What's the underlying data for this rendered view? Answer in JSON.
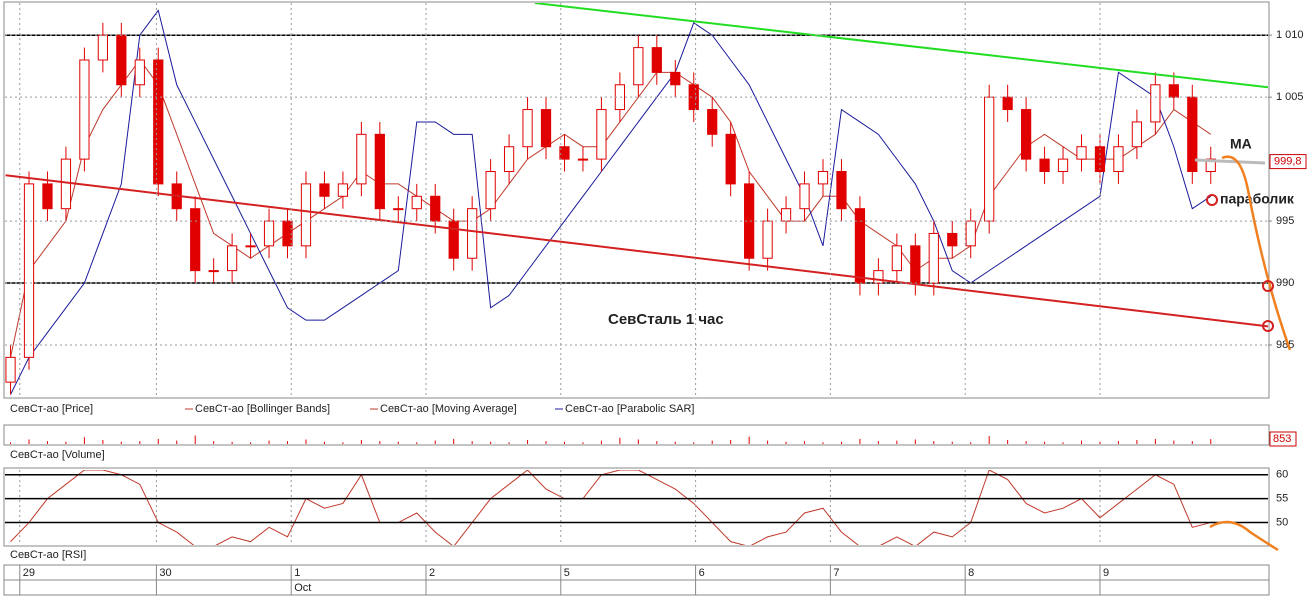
{
  "chart_data": [
    {
      "type": "candlestick",
      "title": "СевСталь   1 час",
      "color": "#e00000",
      "open": [
        982,
        984,
        998,
        996,
        1000,
        1008,
        1010,
        1006,
        1008,
        998,
        996,
        991,
        991,
        993,
        993,
        995,
        993,
        998,
        997,
        998,
        1002,
        996,
        996,
        997,
        995,
        992,
        996,
        999,
        1001,
        1004,
        1001,
        1000,
        1000,
        1004,
        1006,
        1009,
        1007,
        1006,
        1004,
        1002,
        998,
        992,
        995,
        996,
        998,
        999,
        996,
        990,
        991,
        993,
        990,
        994,
        993,
        995,
        1005,
        1004,
        1000,
        999,
        1000,
        1001,
        999,
        1001,
        1003,
        1006,
        1005,
        999
      ],
      "high": [
        985,
        999,
        999,
        1001,
        1009,
        1011,
        1011,
        1009,
        1009,
        999,
        997,
        992,
        994,
        994,
        996,
        996,
        999,
        999,
        999,
        1003,
        1003,
        997,
        998,
        998,
        996,
        997,
        1000,
        1002,
        1005,
        1005,
        1002,
        1001,
        1005,
        1007,
        1010,
        1010,
        1008,
        1007,
        1005,
        1003,
        999,
        996,
        997,
        999,
        1000,
        1000,
        997,
        992,
        994,
        994,
        995,
        995,
        996,
        1006,
        1006,
        1005,
        1001,
        1001,
        1002,
        1002,
        1002,
        1004,
        1007,
        1007,
        1006,
        1001
      ],
      "low": [
        981,
        983,
        995,
        995,
        999,
        1007,
        1005,
        1005,
        997,
        995,
        990,
        990,
        990,
        992,
        992,
        992,
        992,
        996,
        996,
        997,
        995,
        995,
        995,
        994,
        991,
        991,
        995,
        998,
        1000,
        1000,
        999,
        999,
        999,
        1003,
        1005,
        1006,
        1005,
        1003,
        1001,
        997,
        991,
        991,
        994,
        995,
        997,
        995,
        989,
        989,
        990,
        989,
        989,
        992,
        992,
        994,
        1003,
        999,
        998,
        998,
        999,
        998,
        998,
        1000,
        1002,
        1004,
        998,
        998
      ],
      "close": [
        984,
        998,
        996,
        1000,
        1008,
        1010,
        1006,
        1008,
        998,
        996,
        991,
        991,
        993,
        993,
        995,
        993,
        998,
        997,
        998,
        1002,
        996,
        996,
        997,
        995,
        992,
        996,
        999,
        1001,
        1004,
        1001,
        1000,
        1000,
        1004,
        1006,
        1009,
        1007,
        1006,
        1004,
        1002,
        998,
        992,
        995,
        996,
        998,
        999,
        996,
        990,
        991,
        993,
        990,
        994,
        993,
        995,
        1005,
        1004,
        1000,
        999,
        1000,
        1001,
        999,
        1001,
        1003,
        1006,
        1005,
        999,
        1000
      ],
      "overlays": [
        {
          "color": "#c0392b",
          "values": [
            984,
            991,
            993,
            995,
            1001,
            1004,
            1006,
            1008,
            1006,
            1002,
            998,
            994,
            993,
            992,
            993,
            994,
            995,
            996,
            997,
            999,
            998,
            998,
            997,
            996,
            995,
            995,
            996,
            998,
            1000,
            1001,
            1002,
            1001,
            1001,
            1003,
            1005,
            1007,
            1007,
            1006,
            1005,
            1003,
            999,
            997,
            995,
            995,
            997,
            997,
            995,
            994,
            993,
            991,
            992,
            992,
            993,
            997,
            999,
            1001,
            1002,
            1001,
            1000,
            1000,
            1000,
            1001,
            1002,
            1004,
            1003,
            1002
          ]
        },
        {
          "color": "#1a1a9c",
          "values": [
            981,
            984,
            986,
            988,
            990,
            994,
            998,
            1010,
            1012,
            1006,
            1003,
            1000,
            997,
            994,
            991,
            988,
            987,
            987,
            988,
            989,
            990,
            991,
            1003,
            1003,
            1002,
            1002,
            988,
            989,
            991,
            993,
            995,
            997,
            999,
            1001,
            1003,
            1005,
            1007,
            1011,
            1010,
            1008,
            1006,
            1003,
            1000,
            997,
            993,
            1004,
            1003,
            1002,
            1000,
            998,
            995,
            991,
            990,
            991,
            992,
            993,
            994,
            995,
            996,
            997,
            1007,
            1006,
            1005,
            1001,
            996,
            997
          ]
        }
      ],
      "legend": [
        {
          "name": "СевСт-ао [Price]",
          "color": "#e00000"
        },
        {
          "name": "СевСт-ао [Bollinger Bands]",
          "color": "#c0392b"
        },
        {
          "name": "СевСт-ао [Moving Average]",
          "color": "#c0392b"
        },
        {
          "name": "СевСт-ао [Parabolic SAR]",
          "color": "#1a1a9c"
        }
      ],
      "trend_lines": [
        {
          "color": "#22dd22",
          "x": [
            28.4,
            68.1
          ],
          "y": [
            1012.6,
            1005.8
          ]
        },
        {
          "color": "#d42020",
          "x": [
            -0.27,
            68.1
          ],
          "y": [
            998.7,
            986.5
          ]
        }
      ],
      "levels": [
        1010,
        990
      ],
      "last_price": {
        "value": 999.8,
        "label": "999,8"
      },
      "annotations": [
        "MA",
        "параболик"
      ],
      "xlim": [
        -0.3,
        68.1
      ],
      "ylim": [
        980.8,
        1012.6
      ],
      "yticks": [
        {
          "value": 1010,
          "label": "1 010"
        },
        {
          "value": 1005,
          "label": "1 005"
        },
        995,
        990,
        985
      ],
      "xticks": [
        {
          "value": 0.5,
          "label": "29"
        },
        {
          "value": 7.9,
          "label": "30"
        },
        {
          "value": 15.2,
          "label": "1"
        },
        {
          "value": 22.5,
          "label": "2"
        },
        {
          "value": 29.8,
          "label": "5"
        },
        {
          "value": 37.1,
          "label": "6"
        },
        {
          "value": 44.4,
          "label": "7"
        },
        {
          "value": 51.7,
          "label": "8"
        },
        {
          "value": 59.0,
          "label": "9"
        }
      ],
      "xticks2": [
        {
          "value": 15.2,
          "label": "Oct"
        }
      ]
    },
    {
      "type": "bar",
      "name": "СевСт-ао [Volume]",
      "color": "#e00000",
      "ylim": [
        0,
        3000
      ],
      "values": [
        300,
        800,
        500,
        400,
        1200,
        700,
        400,
        500,
        900,
        600,
        1500,
        500,
        400,
        300,
        600,
        500,
        800,
        400,
        300,
        700,
        500,
        400,
        300,
        600,
        900,
        500,
        400,
        300,
        700,
        500,
        400,
        300,
        600,
        1100,
        800,
        500,
        400,
        300,
        600,
        700,
        1300,
        600,
        400,
        500,
        300,
        400,
        900,
        500,
        600,
        800,
        500,
        400,
        300,
        1400,
        700,
        500,
        400,
        300,
        600,
        400,
        500,
        700,
        900,
        600,
        500,
        853
      ]
    },
    {
      "type": "line",
      "name": "СевСт-ао [RSI]",
      "color": "#c0392b",
      "ylim": [
        45.3,
        61
      ],
      "yticks": [
        50,
        55,
        60
      ],
      "values": [
        46,
        50,
        55,
        58,
        61,
        61,
        60,
        58,
        50,
        48,
        45,
        45,
        47,
        46,
        49,
        47,
        55,
        53,
        54,
        60,
        50,
        50,
        52,
        48,
        45,
        50,
        55,
        58,
        61,
        57,
        55,
        55,
        60,
        61,
        61,
        59,
        57,
        54,
        50,
        46,
        45,
        47,
        48,
        52,
        53,
        48,
        45,
        45,
        47,
        45,
        48,
        47,
        50,
        61,
        59,
        54,
        52,
        53,
        55,
        51,
        54,
        57,
        60,
        58,
        49,
        50
      ]
    }
  ]
}
